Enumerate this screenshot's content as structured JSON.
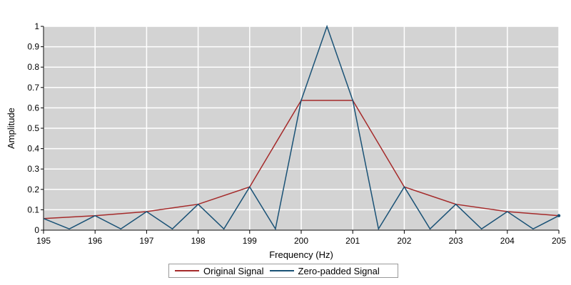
{
  "chart_data": {
    "type": "line",
    "title": "",
    "xlabel": "Frequency (Hz)",
    "ylabel": "Amplitude",
    "xlim": [
      195,
      205
    ],
    "ylim": [
      0,
      1
    ],
    "x_ticks": [
      "195",
      "196",
      "197",
      "198",
      "199",
      "200",
      "201",
      "202",
      "203",
      "204",
      "205"
    ],
    "y_ticks": [
      "0",
      "0.1",
      "0.2",
      "0.3",
      "0.4",
      "0.5",
      "0.6",
      "0.7",
      "0.8",
      "0.9",
      "1"
    ],
    "grid": true,
    "background_color": "#d3d3d3",
    "grid_color": "#ffffff",
    "legend_position": "bottom-center",
    "series": [
      {
        "name": "Original Signal",
        "color": "#a52a2a",
        "x": [
          195,
          196,
          197,
          198,
          199,
          200,
          201,
          202,
          203,
          204,
          205
        ],
        "y": [
          0.057,
          0.071,
          0.091,
          0.127,
          0.212,
          0.637,
          0.637,
          0.212,
          0.127,
          0.091,
          0.071
        ]
      },
      {
        "name": "Zero-padded Signal",
        "color": "#1a5276",
        "x": [
          195,
          195.5,
          196,
          196.5,
          197,
          197.5,
          198,
          198.5,
          199,
          199.5,
          200,
          200.5,
          201,
          201.5,
          202,
          202.5,
          203,
          203.5,
          204,
          204.5,
          205
        ],
        "y": [
          0.057,
          0.006,
          0.071,
          0.006,
          0.091,
          0.006,
          0.127,
          0.006,
          0.212,
          0.006,
          0.637,
          1.0,
          0.637,
          0.006,
          0.212,
          0.006,
          0.127,
          0.006,
          0.091,
          0.006,
          0.071
        ]
      }
    ]
  }
}
